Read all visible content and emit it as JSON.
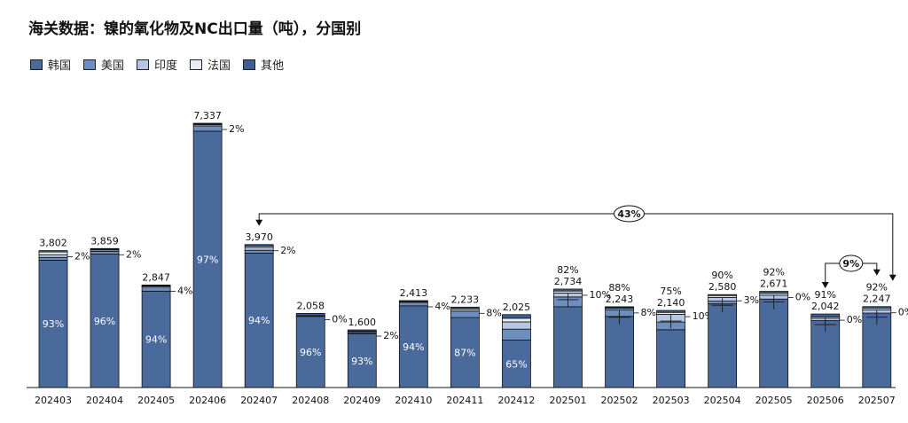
{
  "chart_data": {
    "type": "bar",
    "stacked": true,
    "title": "海关数据：镍的氧化物及NC出口量（吨），分国别",
    "categories": [
      "202403",
      "202404",
      "202405",
      "202406",
      "202407",
      "202408",
      "202409",
      "202410",
      "202411",
      "202412",
      "202501",
      "202502",
      "202503",
      "202504",
      "202505",
      "202506",
      "202507"
    ],
    "totals": [
      3802,
      3859,
      2847,
      7337,
      3970,
      2058,
      1600,
      2413,
      2233,
      2025,
      2734,
      2243,
      2140,
      2580,
      2671,
      2042,
      2247
    ],
    "total_labels": [
      "3,802",
      "3,859",
      "2,847",
      "7,337",
      "3,970",
      "2,058",
      "1,600",
      "2,413",
      "2,233",
      "2,025",
      "2,734",
      "2,243",
      "2,140",
      "2,580",
      "2,671",
      "2,042",
      "2,247"
    ],
    "korea_share_labels": [
      "93%",
      "96%",
      "94%",
      "97%",
      "94%",
      "96%",
      "93%",
      "94%",
      "87%",
      "65%",
      "82%",
      "88%",
      "75%",
      "90%",
      "92%",
      "91%",
      "92%"
    ],
    "korea_label_inside": [
      true,
      true,
      true,
      true,
      true,
      true,
      true,
      true,
      true,
      true,
      false,
      false,
      false,
      false,
      false,
      false,
      false
    ],
    "right_labels": [
      "2%",
      "2%",
      "4%",
      "2%",
      "2%",
      "0%",
      "2%",
      "4%",
      "8%",
      "",
      "10%",
      "8%",
      "10%",
      "3%",
      "0%",
      "0%",
      "0%"
    ],
    "legend": [
      {
        "name": "韩国",
        "color": "#4a6a9c"
      },
      {
        "name": "美国",
        "color": "#6f8ec0"
      },
      {
        "name": "印度",
        "color": "#b6c6e0"
      },
      {
        "name": "法国",
        "color": "#e7ecf5"
      },
      {
        "name": "其他",
        "color": "#3f5f92"
      }
    ],
    "series": [
      {
        "name": "韩国",
        "values": [
          3536,
          3705,
          2676,
          7117,
          3732,
          1976,
          1488,
          2268,
          1943,
          1316,
          2242,
          1974,
          1605,
          2322,
          2457,
          1858,
          2067
        ]
      },
      {
        "name": "美国",
        "values": [
          76,
          77,
          114,
          147,
          79,
          0,
          32,
          97,
          179,
          304,
          273,
          179,
          214,
          77,
          0,
          0,
          0
        ]
      },
      {
        "name": "印度",
        "values": [
          76,
          39,
          28,
          37,
          79,
          21,
          32,
          24,
          56,
          203,
          109,
          45,
          214,
          104,
          107,
          61,
          90
        ]
      },
      {
        "name": "法国",
        "values": [
          76,
          19,
          14,
          18,
          40,
          0,
          16,
          12,
          33,
          101,
          55,
          22,
          54,
          52,
          53,
          41,
          45
        ]
      },
      {
        "name": "其他",
        "values": [
          38,
          19,
          15,
          18,
          40,
          61,
          32,
          12,
          22,
          101,
          55,
          23,
          53,
          25,
          54,
          82,
          45
        ]
      }
    ],
    "annotations": [
      {
        "label": "43%",
        "from": "202407",
        "to": "202507"
      },
      {
        "label": "9%",
        "from": "202506",
        "to": "202507"
      }
    ],
    "ylim": [
      0,
      7800
    ]
  }
}
